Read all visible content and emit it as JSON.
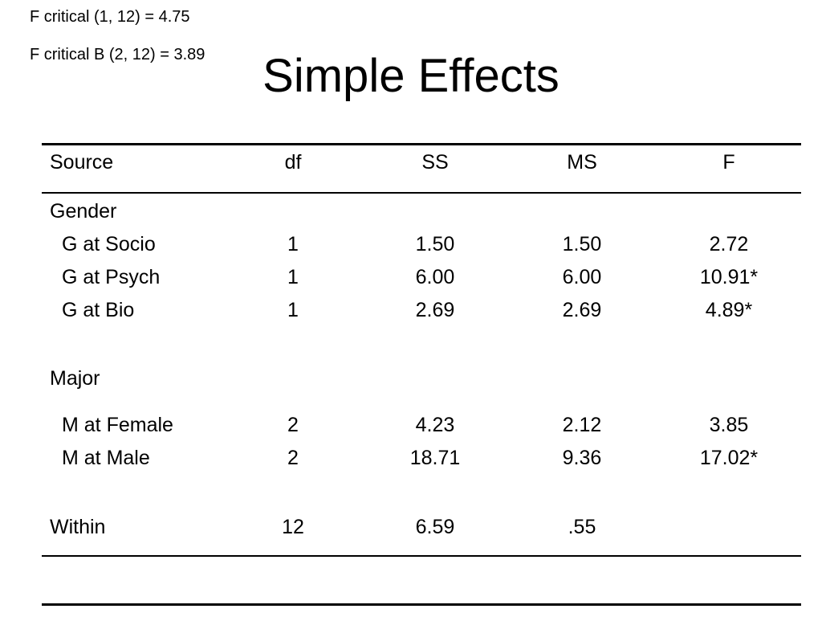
{
  "notes": {
    "f_critical_1": "F critical (1, 12) = 4.75",
    "f_critical_b": "F critical B (2, 12) = 3.89"
  },
  "title": "Simple Effects",
  "table": {
    "headers": {
      "source": "Source",
      "df": "df",
      "ss": "SS",
      "ms": "MS",
      "f": "F"
    },
    "rows": [
      {
        "source": "Gender"
      },
      {
        "source": "G at Socio",
        "df": "1",
        "ss": "1.50",
        "ms": "1.50",
        "f": "2.72"
      },
      {
        "source": "G at Psych",
        "df": "1",
        "ss": "6.00",
        "ms": "6.00",
        "f": "10.91*"
      },
      {
        "source": "G at Bio",
        "df": "1",
        "ss": "2.69",
        "ms": "2.69",
        "f": "4.89*"
      },
      {
        "source": "Major"
      },
      {
        "source": "M at Female",
        "df": "2",
        "ss": "4.23",
        "ms": "2.12",
        "f": "3.85"
      },
      {
        "source": "M at Male",
        "df": "2",
        "ss": "18.71",
        "ms": "9.36",
        "f": "17.02*"
      },
      {
        "source": "Within",
        "df": "12",
        "ss": "6.59",
        "ms": ".55",
        "f": ""
      }
    ]
  }
}
